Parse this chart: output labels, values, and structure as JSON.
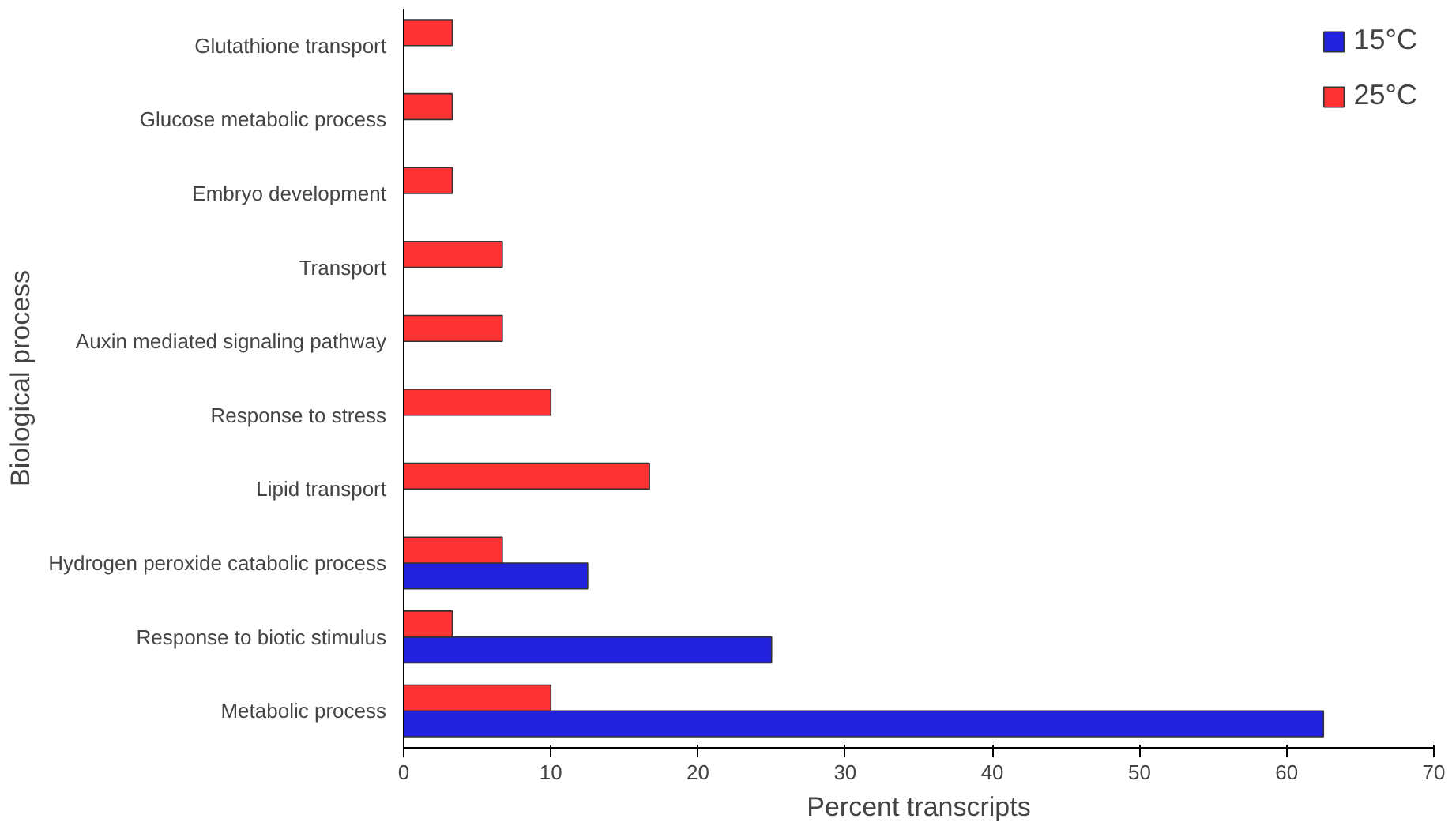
{
  "chart_data": {
    "type": "bar",
    "orientation": "horizontal",
    "xlabel": "Percent transcripts",
    "ylabel": "Biological process",
    "categories": [
      "Glutathione transport",
      "Glucose metabolic process",
      "Embryo development",
      "Transport",
      "Auxin mediated signaling pathway",
      "Response to stress",
      "Lipid transport",
      "Hydrogen peroxide catabolic process",
      "Response to biotic stimulus",
      "Metabolic process"
    ],
    "series": [
      {
        "name": "15°C",
        "color": "#2222dd",
        "values": [
          null,
          null,
          null,
          null,
          null,
          null,
          null,
          12.5,
          25,
          62.5
        ]
      },
      {
        "name": "25°C",
        "color": "#ff3333",
        "values": [
          3.3,
          3.3,
          3.3,
          6.7,
          6.7,
          10,
          16.7,
          6.7,
          3.3,
          10
        ]
      }
    ],
    "xlim": [
      0,
      70
    ],
    "xticks": [
      0,
      10,
      20,
      30,
      40,
      50,
      60,
      70
    ],
    "grid": false,
    "legend": "top right"
  }
}
